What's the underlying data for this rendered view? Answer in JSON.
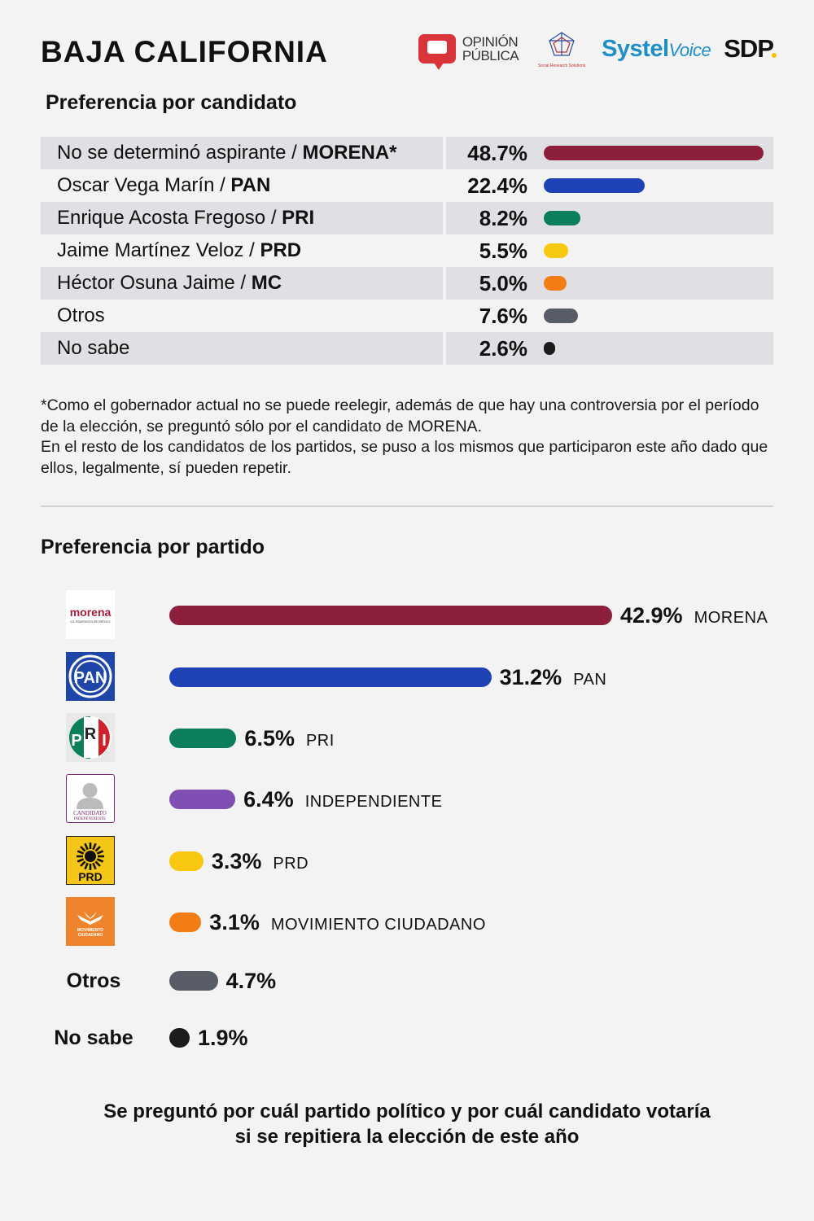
{
  "header": {
    "title": "BAJA CALIFORNIA",
    "logos": {
      "opinion_top": "OPINIÓN",
      "opinion_bottom": "PÚBLICA",
      "srs": "Social Research Solutions",
      "systel": "Systel",
      "systel_voice": "Voice",
      "sdp": "SDP"
    }
  },
  "chart_data": [
    {
      "type": "bar",
      "title": "Preferencia por candidato",
      "rows": [
        {
          "name": "No se determinó aspirante / ",
          "party": "MORENA*",
          "value": 48.7,
          "label": "48.7%",
          "color": "#8c1f3c"
        },
        {
          "name": "Oscar Vega Marín / ",
          "party": "PAN",
          "value": 22.4,
          "label": "22.4%",
          "color": "#1f43b4"
        },
        {
          "name": "Enrique Acosta Fregoso / ",
          "party": "PRI",
          "value": 8.2,
          "label": "8.2%",
          "color": "#0b7e5b"
        },
        {
          "name": "Jaime Martínez Veloz / ",
          "party": "PRD",
          "value": 5.5,
          "label": "5.5%",
          "color": "#f7c80f"
        },
        {
          "name": "Héctor Osuna Jaime / ",
          "party": "MC",
          "value": 5.0,
          "label": "5.0%",
          "color": "#f47c14"
        },
        {
          "name": "Otros",
          "party": "",
          "value": 7.6,
          "label": "7.6%",
          "color": "#585c66"
        },
        {
          "name": "No sabe",
          "party": "",
          "value": 2.6,
          "label": "2.6%",
          "color": "#1c1c1c"
        }
      ]
    },
    {
      "type": "bar",
      "title": "Preferencia por partido",
      "rows": [
        {
          "name": "MORENA",
          "value": 42.9,
          "label": "42.9%",
          "color": "#8c1f3c",
          "logo": "morena-logo"
        },
        {
          "name": "PAN",
          "value": 31.2,
          "label": "31.2%",
          "color": "#1f43b4",
          "logo": "pan-logo"
        },
        {
          "name": "PRI",
          "value": 6.5,
          "label": "6.5%",
          "color": "#0b7e5b",
          "logo": "pri-logo"
        },
        {
          "name": "INDEPENDIENTE",
          "value": 6.4,
          "label": "6.4%",
          "color": "#7f4fb3",
          "logo": "independiente-logo"
        },
        {
          "name": "PRD",
          "value": 3.3,
          "label": "3.3%",
          "color": "#f7c80f",
          "logo": "prd-logo"
        },
        {
          "name": "MOVIMIENTO CIUDADANO",
          "value": 3.1,
          "label": "3.1%",
          "color": "#f47c14",
          "logo": "mc-logo"
        },
        {
          "name": "Otros",
          "value": 4.7,
          "label": "4.7%",
          "color": "#585c66",
          "logo": ""
        },
        {
          "name": "No sabe",
          "value": 1.9,
          "label": "1.9%",
          "color": "#1c1c1c",
          "logo": ""
        }
      ]
    }
  ],
  "logo_text": {
    "morena": "morena",
    "morena_sub": "La esperanza de México",
    "pan": "PAN",
    "pri_p": "P",
    "pri_r": "R",
    "pri_i": "I",
    "ind_1": "CANDIDATO",
    "ind_2": "INDEPENDIENTE",
    "prd": "PRD",
    "mc_1": "MOVIMIENTO",
    "mc_2": "CIUDADANO"
  },
  "note": [
    "*Como el gobernador actual no se puede reelegir, además de que hay una controversia por el período de la elección, se preguntó sólo por el candidato de MORENA.",
    "En el resto de los candidatos de los partidos, se puso a los mismos que participaron este año dado que ellos, legalmente, sí pueden repetir."
  ],
  "footer": {
    "line1": "Se preguntó por cuál partido político y por cuál candidato votaría",
    "line2": "si se repitiera la elección de este año"
  }
}
